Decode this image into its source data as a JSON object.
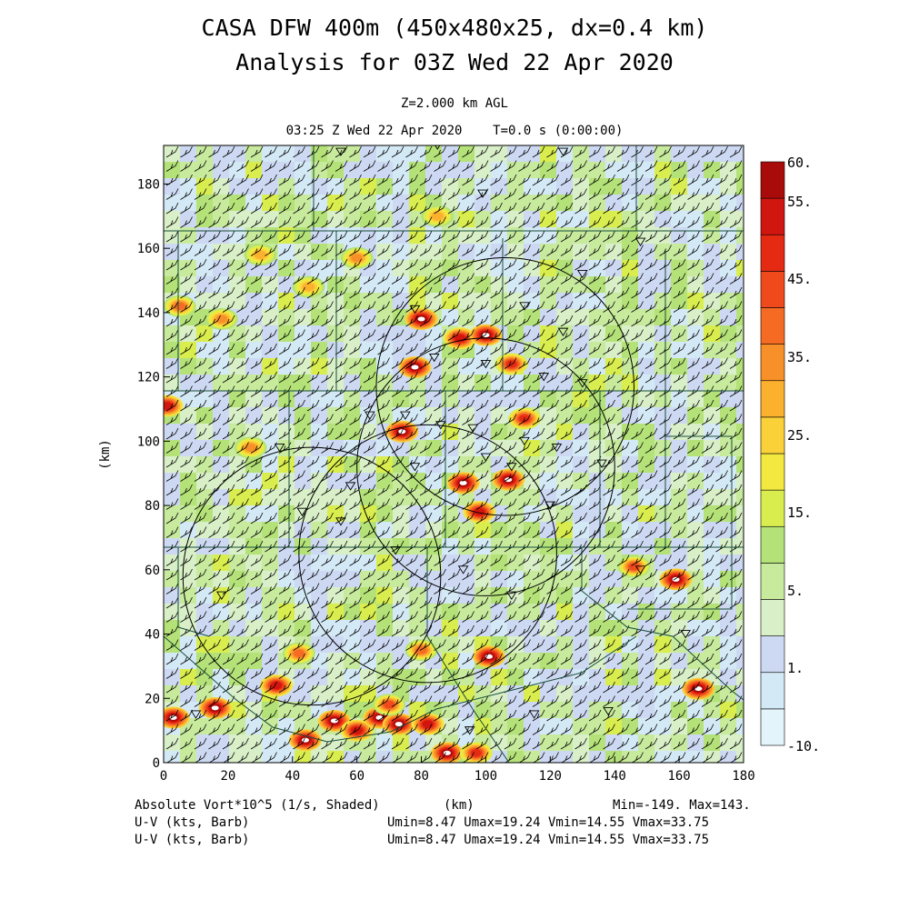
{
  "title_line1": "CASA DFW 400m (450x480x25, dx=0.4 km)",
  "title_line2": "Analysis for 03Z Wed 22 Apr 2020",
  "level_label": "Z=2.000 km AGL",
  "time_label": "03:25 Z Wed 22 Apr 2020    T=0.0 s (0:00:00)",
  "footer": {
    "field1_name": "Absolute Vort*10^5 (1/s, Shaded)",
    "field1_stats": "Min=-149. Max=143.",
    "xunit": "(km)",
    "field2_name": "U-V (kts, Barb)",
    "field2_stats": "Umin=8.47 Umax=19.24 Vmin=14.55 Vmax=33.75",
    "field3_name": "U-V (kts, Barb)",
    "field3_stats": "Umin=8.47 Umax=19.24 Vmin=14.55 Vmax=33.75"
  },
  "colors": {
    "colorbar": [
      "#e4f4fb",
      "#d4e9f6",
      "#cdd9f2",
      "#d8efc7",
      "#c7ea9d",
      "#b4e278",
      "#d9ee4e",
      "#f3e83f",
      "#fbd13a",
      "#fbb12d",
      "#f8902a",
      "#f56b23",
      "#f04a1c",
      "#e52a14",
      "#d1150f",
      "#a80b0a"
    ]
  },
  "chart_data": {
    "type": "heatmap",
    "title": "CASA DFW 400m (450x480x25, dx=0.4 km)",
    "subtitle": "Analysis for 03Z Wed 22 Apr 2020",
    "xlabel": "(km)",
    "ylabel": "(km)",
    "xlim": [
      0,
      180
    ],
    "ylim": [
      0,
      192
    ],
    "x_ticks": [
      "0",
      "20",
      "40",
      "60",
      "80",
      "100",
      "120",
      "140",
      "160",
      "180"
    ],
    "y_ticks": [
      "0",
      "20",
      "40",
      "60",
      "80",
      "100",
      "120",
      "140",
      "160",
      "180"
    ],
    "colorbar_labels": [
      "60.",
      "55.",
      "45.",
      "35.",
      "25.",
      "15.",
      "5.",
      "1.",
      "-10."
    ],
    "colorbar_levels": [
      -10,
      -5,
      0,
      1,
      3,
      5,
      10,
      15,
      20,
      25,
      30,
      35,
      40,
      45,
      50,
      55,
      60
    ],
    "range_rings": [
      {
        "center": [
          106,
          117
        ],
        "radius": 40
      },
      {
        "center": [
          100,
          92
        ],
        "radius": 40
      },
      {
        "center": [
          82,
          65
        ],
        "radius": 40
      },
      {
        "center": [
          46,
          58
        ],
        "radius": 40
      }
    ],
    "vorticity_maxima": [
      {
        "x": 3,
        "y": 14,
        "v": 60
      },
      {
        "x": 16,
        "y": 17,
        "v": 60
      },
      {
        "x": 35,
        "y": 24,
        "v": 50
      },
      {
        "x": 44,
        "y": 7,
        "v": 55
      },
      {
        "x": 53,
        "y": 13,
        "v": 60
      },
      {
        "x": 60,
        "y": 10,
        "v": 50
      },
      {
        "x": 67,
        "y": 14,
        "v": 60
      },
      {
        "x": 73,
        "y": 12,
        "v": 55
      },
      {
        "x": 82,
        "y": 12,
        "v": 50
      },
      {
        "x": 88,
        "y": 3,
        "v": 60
      },
      {
        "x": 97,
        "y": 3,
        "v": 45
      },
      {
        "x": 101,
        "y": 33,
        "v": 55
      },
      {
        "x": 166,
        "y": 23,
        "v": 60
      },
      {
        "x": 159,
        "y": 57,
        "v": 60
      },
      {
        "x": 146,
        "y": 61,
        "v": 40
      },
      {
        "x": 1,
        "y": 111,
        "v": 50
      },
      {
        "x": 74,
        "y": 103,
        "v": 55
      },
      {
        "x": 78,
        "y": 123,
        "v": 55
      },
      {
        "x": 80,
        "y": 138,
        "v": 55
      },
      {
        "x": 92,
        "y": 132,
        "v": 50
      },
      {
        "x": 100,
        "y": 133,
        "v": 55
      },
      {
        "x": 108,
        "y": 124,
        "v": 45
      },
      {
        "x": 112,
        "y": 107,
        "v": 45
      },
      {
        "x": 107,
        "y": 88,
        "v": 60
      },
      {
        "x": 93,
        "y": 87,
        "v": 60
      },
      {
        "x": 98,
        "y": 78,
        "v": 50
      },
      {
        "x": 60,
        "y": 157,
        "v": 30
      },
      {
        "x": 5,
        "y": 142,
        "v": 35
      },
      {
        "x": 18,
        "y": 138,
        "v": 30
      },
      {
        "x": 30,
        "y": 158,
        "v": 25
      },
      {
        "x": 45,
        "y": 148,
        "v": 25
      },
      {
        "x": 70,
        "y": 18,
        "v": 40
      },
      {
        "x": 80,
        "y": 35,
        "v": 35
      },
      {
        "x": 42,
        "y": 34,
        "v": 35
      },
      {
        "x": 27,
        "y": 98,
        "v": 30
      },
      {
        "x": 85,
        "y": 170,
        "v": 25
      }
    ]
  }
}
